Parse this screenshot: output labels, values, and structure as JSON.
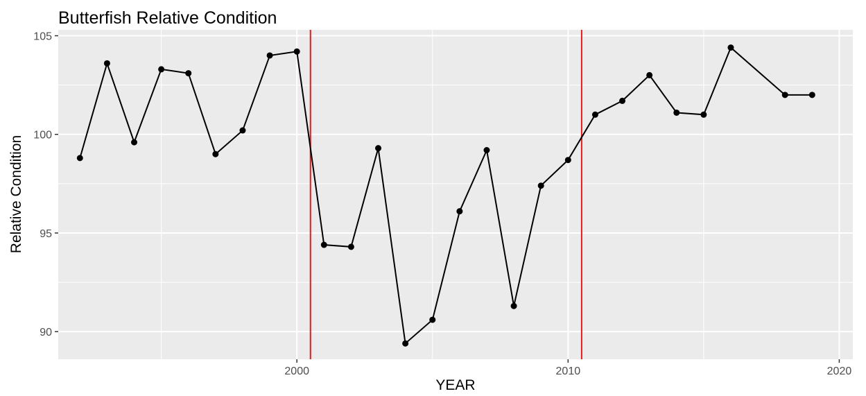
{
  "chart_data": {
    "type": "line",
    "title": "Butterfish Relative Condition",
    "xlabel": "YEAR",
    "ylabel": "Relative Condition",
    "xlim": [
      1991.2,
      2020.5
    ],
    "ylim": [
      88.6,
      105.3
    ],
    "x_ticks": [
      {
        "value": 2000,
        "label": "2000"
      },
      {
        "value": 2010,
        "label": "2010"
      },
      {
        "value": 2020,
        "label": "2020"
      }
    ],
    "y_ticks": [
      {
        "value": 90,
        "label": "90"
      },
      {
        "value": 95,
        "label": "95"
      },
      {
        "value": 100,
        "label": "100"
      },
      {
        "value": 105,
        "label": "105"
      }
    ],
    "grid": true,
    "colors": {
      "panel_background": "#ebebeb",
      "grid": "#ffffff",
      "series": "#000000",
      "vlines": "#e31a1c",
      "text": "#000000",
      "tick_text": "#4d4d4d"
    },
    "vlines": [
      2000.5,
      2010.5
    ],
    "series": [
      {
        "x": [
          1992,
          1993,
          1994,
          1995,
          1996,
          1997,
          1998,
          1999,
          2000,
          2001,
          2002,
          2003,
          2004,
          2005,
          2006,
          2007,
          2008,
          2009,
          2010,
          2011,
          2012,
          2013,
          2014,
          2015,
          2016,
          2018,
          2019
        ],
        "values": [
          98.8,
          103.6,
          99.6,
          103.3,
          103.1,
          99.0,
          100.2,
          104.0,
          104.2,
          94.4,
          94.3,
          99.3,
          89.4,
          90.6,
          96.1,
          99.2,
          91.3,
          97.4,
          98.7,
          101.0,
          101.7,
          103.0,
          101.1,
          101.0,
          104.4,
          102.0,
          102.0
        ]
      }
    ]
  }
}
